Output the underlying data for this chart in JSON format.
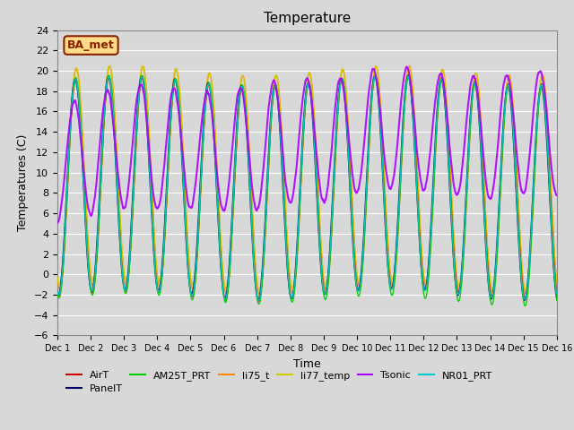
{
  "title": "Temperature",
  "ylabel": "Temperatures (C)",
  "xlabel": "Time",
  "ylim": [
    -6,
    24
  ],
  "yticks": [
    -6,
    -4,
    -2,
    0,
    2,
    4,
    6,
    8,
    10,
    12,
    14,
    16,
    18,
    20,
    22,
    24
  ],
  "xlim_days": [
    0,
    15
  ],
  "xtick_labels": [
    "Dec 1",
    "Dec 2",
    "Dec 3",
    "Dec 4",
    "Dec 5",
    "Dec 6",
    "Dec 7",
    "Dec 8",
    "Dec 9",
    "Dec 10",
    "Dec 11",
    "Dec 12",
    "Dec 13",
    "Dec 14",
    "Dec 15",
    "Dec 16"
  ],
  "annotation_text": "BA_met",
  "annotation_facecolor": "#ffdd88",
  "annotation_edgecolor": "#882200",
  "background_color": "#d8d8d8",
  "series": [
    {
      "name": "AirT",
      "color": "#cc0000",
      "lw": 1.0,
      "zorder": 4
    },
    {
      "name": "PanelT",
      "color": "#000066",
      "lw": 1.0,
      "zorder": 4
    },
    {
      "name": "AM25T_PRT",
      "color": "#00cc00",
      "lw": 1.0,
      "zorder": 4
    },
    {
      "name": "li75_t",
      "color": "#ff8800",
      "lw": 1.0,
      "zorder": 3
    },
    {
      "name": "li77_temp",
      "color": "#cccc00",
      "lw": 1.0,
      "zorder": 3
    },
    {
      "name": "Tsonic",
      "color": "#aa00ff",
      "lw": 1.5,
      "zorder": 5
    },
    {
      "name": "NR01_PRT",
      "color": "#00cccc",
      "lw": 1.0,
      "zorder": 4
    }
  ],
  "n_points": 2160,
  "days": 15
}
